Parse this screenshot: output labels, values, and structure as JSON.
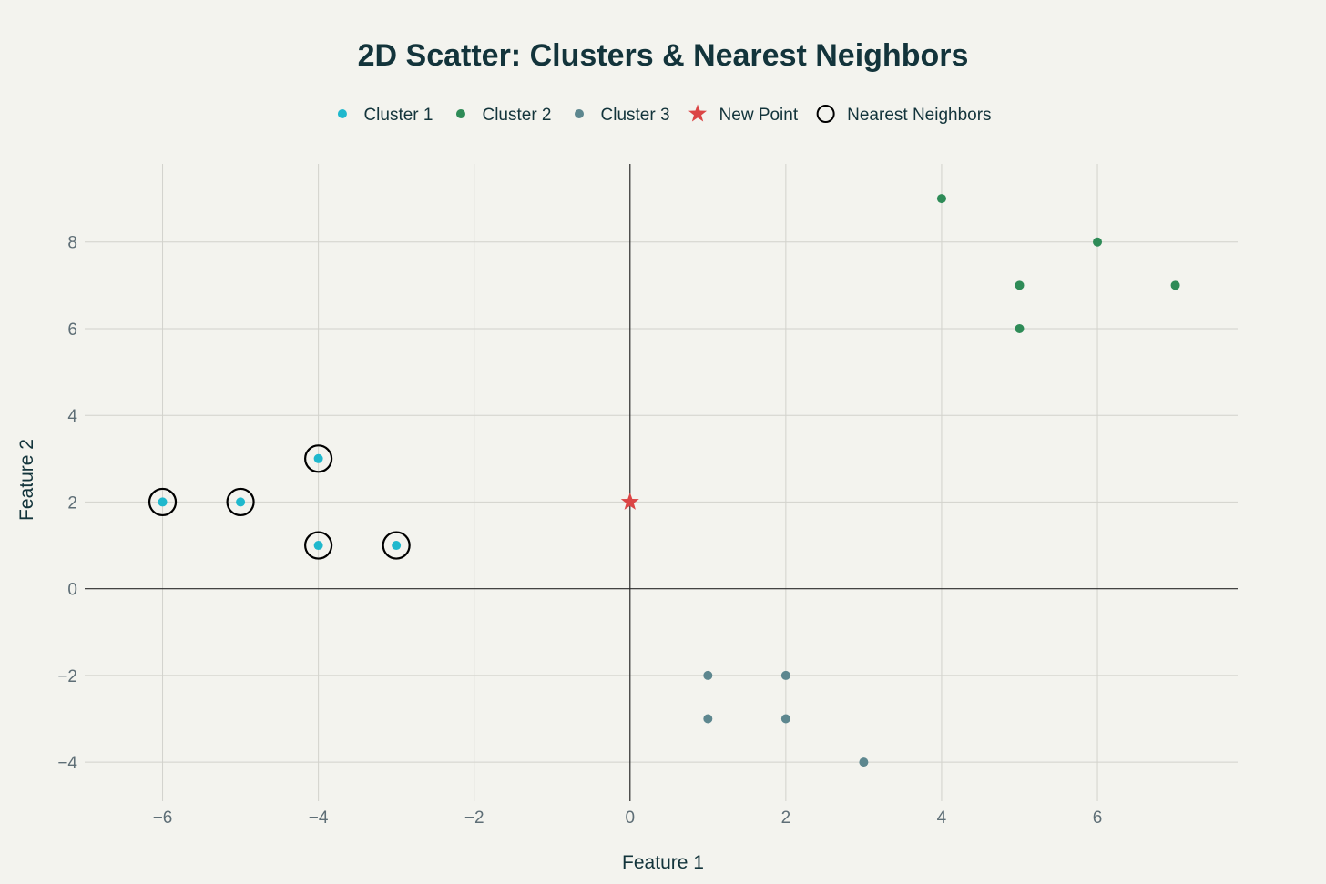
{
  "chart_data": {
    "type": "scatter",
    "title": "2D Scatter: Clusters & Nearest Neighbors",
    "xlabel": "Feature 1",
    "ylabel": "Feature 2",
    "xlim": [
      -7,
      7.8
    ],
    "ylim": [
      -4.9,
      9.8
    ],
    "grid": true,
    "zero_lines": true,
    "legend_position": "top-center, horizontal",
    "x_ticks": [
      {
        "value": -6,
        "label": "−6"
      },
      {
        "value": -4,
        "label": "−4"
      },
      {
        "value": -2,
        "label": "−2"
      },
      {
        "value": 0,
        "label": "0"
      },
      {
        "value": 2,
        "label": "2"
      },
      {
        "value": 4,
        "label": "4"
      },
      {
        "value": 6,
        "label": "6"
      }
    ],
    "y_ticks": [
      {
        "value": -4,
        "label": "−4"
      },
      {
        "value": -2,
        "label": "−2"
      },
      {
        "value": 0,
        "label": "0"
      },
      {
        "value": 2,
        "label": "2"
      },
      {
        "value": 4,
        "label": "4"
      },
      {
        "value": 6,
        "label": "6"
      },
      {
        "value": 8,
        "label": "8"
      }
    ],
    "series": [
      {
        "name": "Cluster 1",
        "marker": "circle",
        "color": "#1fb8cd",
        "points": [
          [
            -6,
            2
          ],
          [
            -5,
            2
          ],
          [
            -4,
            3
          ],
          [
            -4,
            1
          ],
          [
            -3,
            1
          ]
        ]
      },
      {
        "name": "Cluster 2",
        "marker": "circle",
        "color": "#2e8b57",
        "points": [
          [
            4,
            9
          ],
          [
            6,
            8
          ],
          [
            5,
            7
          ],
          [
            7,
            7
          ],
          [
            5,
            6
          ]
        ]
      },
      {
        "name": "Cluster 3",
        "marker": "circle",
        "color": "#5d878f",
        "points": [
          [
            1,
            -2
          ],
          [
            2,
            -2
          ],
          [
            1,
            -3
          ],
          [
            2,
            -3
          ],
          [
            3,
            -4
          ]
        ]
      },
      {
        "name": "New Point",
        "marker": "star",
        "color": "#db4545",
        "points": [
          [
            0,
            2
          ]
        ]
      },
      {
        "name": "Nearest Neighbors",
        "marker": "circle-open",
        "color": "#000000",
        "points": [
          [
            -6,
            2
          ],
          [
            -5,
            2
          ],
          [
            -4,
            3
          ],
          [
            -4,
            1
          ],
          [
            -3,
            1
          ]
        ]
      }
    ]
  }
}
